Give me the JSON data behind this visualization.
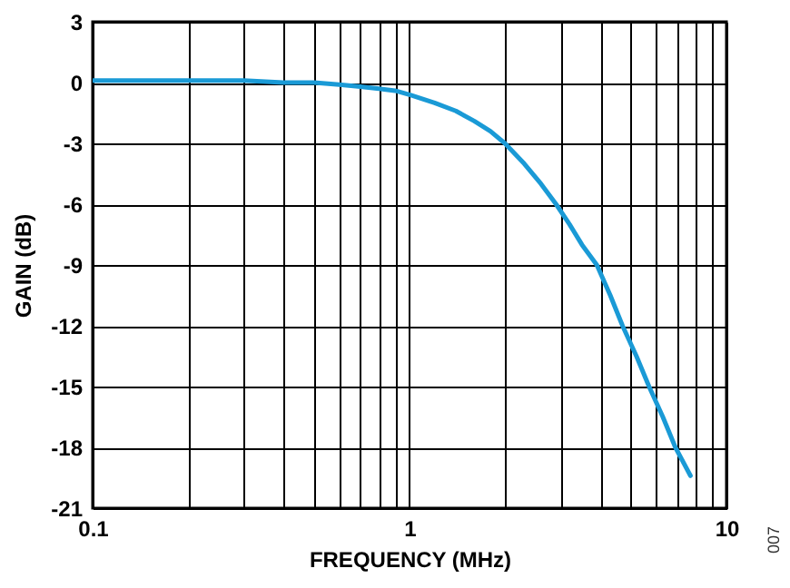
{
  "chart_data": {
    "type": "line",
    "xlabel": "FREQUENCY (MHz)",
    "ylabel": "GAIN (dB)",
    "x": [
      0.1,
      0.2,
      0.3,
      0.4,
      0.5,
      0.6,
      0.7,
      0.8,
      0.9,
      1,
      1.2,
      1.4,
      1.6,
      1.8,
      2,
      2.3,
      2.6,
      2.9,
      3.2,
      3.5,
      3.9,
      4.3,
      4.7,
      5.2,
      5.7,
      6.3,
      6.9,
      7.7
    ],
    "series": [
      {
        "color": "#1a9ad6",
        "values": [
          0.1,
          0.1,
          0.1,
          0.0,
          0.0,
          -0.1,
          -0.2,
          -0.3,
          -0.4,
          -0.6,
          -1.0,
          -1.4,
          -1.9,
          -2.4,
          -3.0,
          -4.0,
          -5.0,
          -6.0,
          -7.0,
          -8.0,
          -9.0,
          -10.5,
          -12.0,
          -13.5,
          -15.0,
          -16.5,
          -18.0,
          -19.4
        ]
      }
    ],
    "xlim": [
      0.1,
      10
    ],
    "ylim": [
      -21,
      3
    ],
    "log": "x",
    "xticks": [
      0.1,
      {
        "value": 0.2,
        "label": null
      },
      {
        "value": 0.3,
        "label": null
      },
      {
        "value": 0.4,
        "label": null
      },
      {
        "value": 0.5,
        "label": null
      },
      {
        "value": 0.6,
        "label": null
      },
      {
        "value": 0.7,
        "label": null
      },
      {
        "value": 0.8,
        "label": null
      },
      {
        "value": 0.9,
        "label": null
      },
      1,
      {
        "value": 2,
        "label": null
      },
      {
        "value": 3,
        "label": null
      },
      {
        "value": 4,
        "label": null
      },
      {
        "value": 5,
        "label": null
      },
      {
        "value": 6,
        "label": null
      },
      {
        "value": 7,
        "label": null
      },
      {
        "value": 8,
        "label": null
      },
      {
        "value": 9,
        "label": null
      },
      10
    ],
    "yticks": [
      3,
      0,
      -3,
      -6,
      -9,
      -12,
      -15,
      -18,
      -21
    ],
    "grid": true,
    "legend": false,
    "marker": "none",
    "line_style": "solid",
    "annotations": [
      "007"
    ]
  }
}
